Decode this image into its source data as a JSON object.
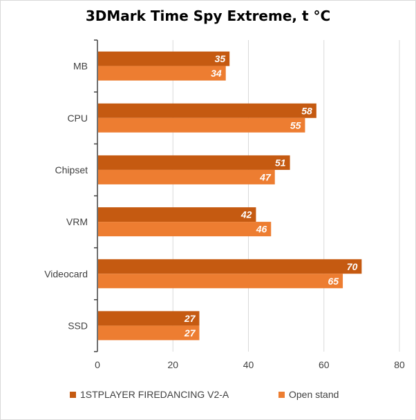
{
  "chart_data": {
    "type": "bar",
    "orientation": "horizontal",
    "title": "3DMark Time Spy Extreme, t °C",
    "categories": [
      "MB",
      "CPU",
      "Chipset",
      "VRM",
      "Videocard",
      "SSD"
    ],
    "series": [
      {
        "name": "1STPLAYER FIREDANCING V2-A",
        "color": "#c55a11",
        "values": [
          35,
          58,
          51,
          42,
          70,
          27
        ]
      },
      {
        "name": "Open stand",
        "color": "#ed7d31",
        "values": [
          34,
          55,
          47,
          46,
          65,
          27
        ]
      }
    ],
    "xlim": [
      0,
      80
    ],
    "x_ticks": [
      "0",
      "20",
      "40",
      "60",
      "80"
    ],
    "grid": true,
    "legend_position": "bottom",
    "data_labels": true
  }
}
